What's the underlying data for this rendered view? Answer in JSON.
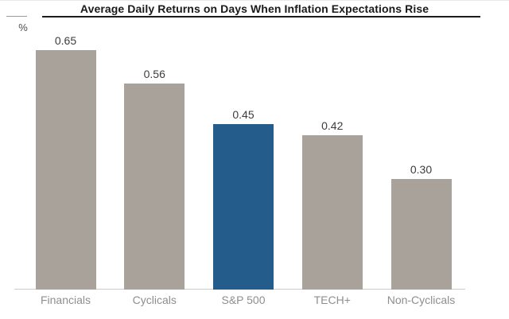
{
  "chart_data": {
    "type": "bar",
    "title": "Average Daily Returns on Days When Inflation Expectations Rise",
    "ylabel": "%",
    "xlabel": "",
    "categories": [
      "Financials",
      "Cyclicals",
      "S&P 500",
      "TECH+",
      "Non-Cyclicals"
    ],
    "values": [
      0.65,
      0.56,
      0.45,
      0.42,
      0.3
    ],
    "value_labels": [
      "0.65",
      "0.56",
      "0.45",
      "0.42",
      "0.30"
    ],
    "highlight_category": "S&P 500",
    "ylim": [
      0,
      0.72
    ],
    "grid": false,
    "legend": false,
    "colors": {
      "bar_default": "#A9A29B",
      "bar_highlight": "#245D8C",
      "value_label": "#3C3C3C",
      "category_label": "#8E8E8E",
      "axis_line": "#CCCCCC",
      "title_underline": "#1C1C1C",
      "title_text": "#1A1A1A"
    }
  }
}
